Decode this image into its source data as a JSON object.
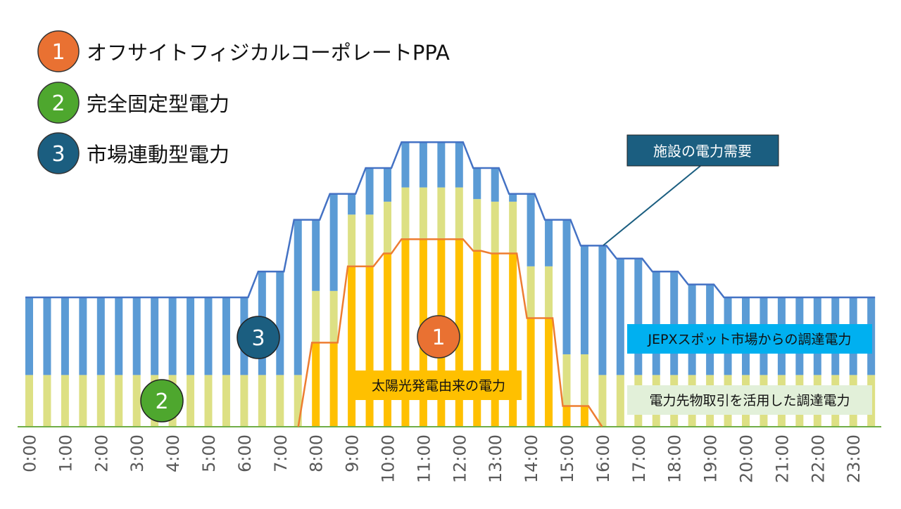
{
  "legend": [
    {
      "number": "1",
      "label": "オフサイトフィジカルコーポレートPPA",
      "color": "#E97132"
    },
    {
      "number": "2",
      "label": "完全固定型電力",
      "color": "#4EA72E"
    },
    {
      "number": "3",
      "label": "市場連動型電力",
      "color": "#1B5E80"
    }
  ],
  "callouts": {
    "demand": "施設の電力需要",
    "spot": "JEPXスポット市場からの調達電力",
    "futures": "電力先物取引を活用した調達電力",
    "solar": "太陽光発電由来の電力"
  },
  "markers": {
    "solar": "1",
    "futures": "2",
    "spot": "3"
  },
  "colors": {
    "spot": "#5B9BD5",
    "futures": "#DDE084",
    "solar": "#FFC000",
    "demand_line": "#4472C4",
    "solar_line": "#ED7D31",
    "baseline": "#70AD47",
    "demand_box": "#1B5E80",
    "spot_box": "#00B0F0",
    "futures_box": "#E2F0D9"
  },
  "chart_data": {
    "type": "bar",
    "stacked": true,
    "interval": "30min",
    "x_tick_labels": [
      "0:00",
      "1:00",
      "2:00",
      "3:00",
      "4:00",
      "5:00",
      "6:00",
      "7:00",
      "8:00",
      "9:00",
      "10:00",
      "11:00",
      "12:00",
      "13:00",
      "14:00",
      "15:00",
      "16:00",
      "17:00",
      "18:00",
      "19:00",
      "20:00",
      "21:00",
      "22:00",
      "23:00"
    ],
    "ylim": [
      0,
      115
    ],
    "grid": false,
    "demand": [
      50,
      50,
      50,
      50,
      50,
      50,
      50,
      50,
      50,
      50,
      50,
      50,
      50,
      60,
      60,
      80,
      80,
      90,
      90,
      100,
      100,
      110,
      110,
      110,
      110,
      100,
      100,
      90,
      90,
      80,
      80,
      70,
      70,
      65,
      65,
      60,
      60,
      55,
      55,
      50,
      50,
      50,
      50,
      50,
      50,
      50,
      50,
      50
    ],
    "solar": [
      0,
      0,
      0,
      0,
      0,
      0,
      0,
      0,
      0,
      0,
      0,
      0,
      0,
      0,
      0,
      0,
      32.5,
      32.5,
      62,
      62,
      67,
      72.5,
      72.5,
      72.5,
      72.5,
      68,
      67,
      67,
      42,
      42,
      8,
      8,
      0,
      0,
      0,
      0,
      0,
      0,
      0,
      0,
      0,
      0,
      0,
      0,
      0,
      0,
      0,
      0
    ],
    "futures": [
      20,
      20,
      20,
      20,
      20,
      20,
      20,
      20,
      20,
      20,
      20,
      20,
      20,
      20,
      20,
      20,
      20,
      20,
      20,
      20,
      20,
      20,
      20,
      20,
      20,
      20,
      20,
      20,
      20,
      20,
      20,
      20,
      20,
      20,
      20,
      20,
      20,
      20,
      20,
      20,
      20,
      20,
      20,
      20,
      20,
      20,
      20,
      20
    ]
  }
}
